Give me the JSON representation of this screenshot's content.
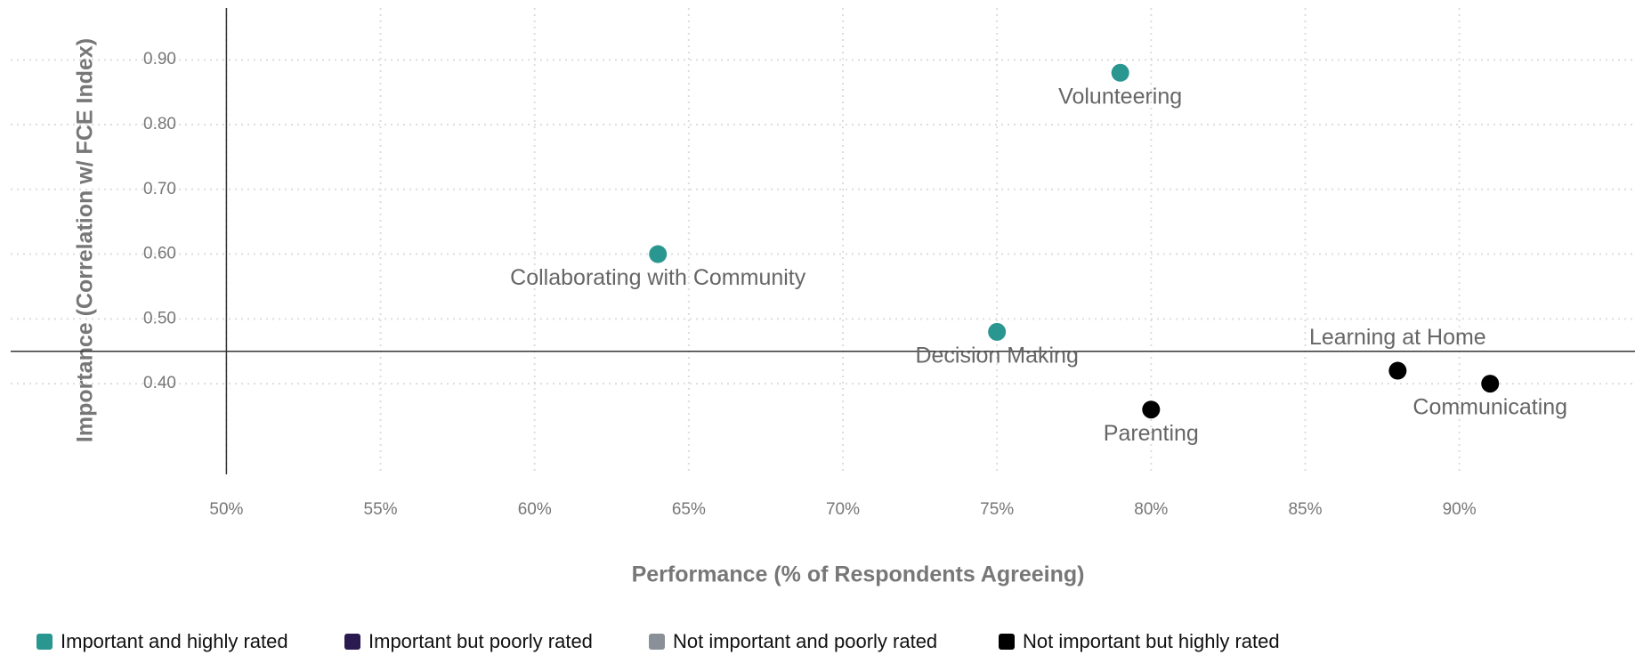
{
  "chart_data": {
    "type": "scatter",
    "x_label": "Performance (% of Respondents Agreeing)",
    "y_label": "Importance (Correlation w/ FCE Index)",
    "xlim": [
      43,
      95.7
    ],
    "ylim": [
      0.26,
      0.98
    ],
    "xticks": [
      {
        "value": 50,
        "label": "50%"
      },
      {
        "value": 55,
        "label": "55%"
      },
      {
        "value": 60,
        "label": "60%"
      },
      {
        "value": 65,
        "label": "65%"
      },
      {
        "value": 70,
        "label": "70%"
      },
      {
        "value": 75,
        "label": "75%"
      },
      {
        "value": 80,
        "label": "80%"
      },
      {
        "value": 85,
        "label": "85%"
      },
      {
        "value": 90,
        "label": "90%"
      }
    ],
    "yticks": [
      {
        "value": 0.4,
        "label": "0.40"
      },
      {
        "value": 0.5,
        "label": "0.50"
      },
      {
        "value": 0.6,
        "label": "0.60"
      },
      {
        "value": 0.7,
        "label": "0.70"
      },
      {
        "value": 0.8,
        "label": "0.80"
      },
      {
        "value": 0.9,
        "label": "0.90"
      }
    ],
    "quadrant_x": 50,
    "quadrant_y": 0.45,
    "grid": true,
    "legend": "bottom",
    "series": [
      {
        "name": "Important and highly rated",
        "color": "#2a9690",
        "x": [
          79,
          64,
          75
        ],
        "values": [
          0.88,
          0.6,
          0.48
        ],
        "labels": [
          "Volunteering",
          "Collaborating with Community",
          "Decision Making"
        ]
      },
      {
        "name": "Important but poorly rated",
        "color": "#2b1a4f",
        "x": [],
        "values": [],
        "labels": []
      },
      {
        "name": "Not important and poorly rated",
        "color": "#8a9097",
        "x": [],
        "values": [],
        "labels": []
      },
      {
        "name": "Not important but highly rated",
        "color": "#000000",
        "x": [
          88,
          91,
          80
        ],
        "values": [
          0.42,
          0.4,
          0.36
        ],
        "labels": [
          "Learning at Home",
          "Communicating",
          "Parenting"
        ]
      }
    ]
  }
}
